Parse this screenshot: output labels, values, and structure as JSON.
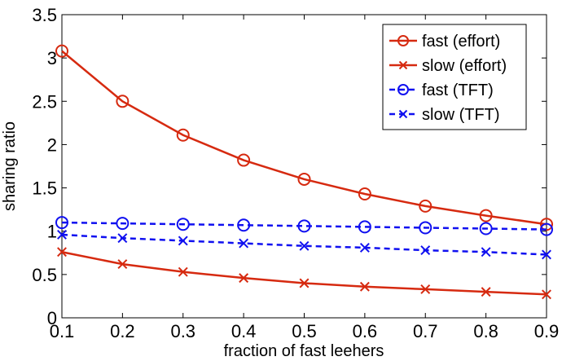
{
  "chart_data": {
    "type": "line",
    "xlabel": "fraction of fast leehers",
    "ylabel": "sharing ratio",
    "xlim": [
      0.1,
      0.9
    ],
    "ylim": [
      0,
      3.5
    ],
    "x": [
      0.1,
      0.2,
      0.3,
      0.4,
      0.5,
      0.6,
      0.7,
      0.8,
      0.9
    ],
    "x_tick_labels": [
      "0.1",
      "0.2",
      "0.3",
      "0.4",
      "0.5",
      "0.6",
      "0.7",
      "0.8",
      "0.9"
    ],
    "y_ticks": [
      0,
      0.5,
      1,
      1.5,
      2,
      2.5,
      3,
      3.5
    ],
    "y_tick_labels": [
      "0",
      "0.5",
      "1",
      "1.5",
      "2",
      "2.5",
      "3",
      "3.5"
    ],
    "grid": false,
    "legend_position": "top-right",
    "series": [
      {
        "name": "fast (effort)",
        "color": "#d62a10",
        "marker": "circle",
        "dash": "solid",
        "values": [
          3.08,
          2.5,
          2.11,
          1.82,
          1.6,
          1.43,
          1.29,
          1.18,
          1.08
        ]
      },
      {
        "name": "slow (effort)",
        "color": "#d62a10",
        "marker": "x",
        "dash": "solid",
        "values": [
          0.76,
          0.62,
          0.53,
          0.46,
          0.4,
          0.36,
          0.33,
          0.3,
          0.27
        ]
      },
      {
        "name": "fast (TFT)",
        "color": "#1010f0",
        "marker": "circle",
        "dash": "dashed",
        "values": [
          1.1,
          1.09,
          1.08,
          1.07,
          1.06,
          1.05,
          1.04,
          1.03,
          1.02
        ]
      },
      {
        "name": "slow (TFT)",
        "color": "#1010f0",
        "marker": "x",
        "dash": "dashed",
        "values": [
          0.96,
          0.92,
          0.89,
          0.86,
          0.83,
          0.81,
          0.78,
          0.76,
          0.73
        ]
      }
    ]
  }
}
